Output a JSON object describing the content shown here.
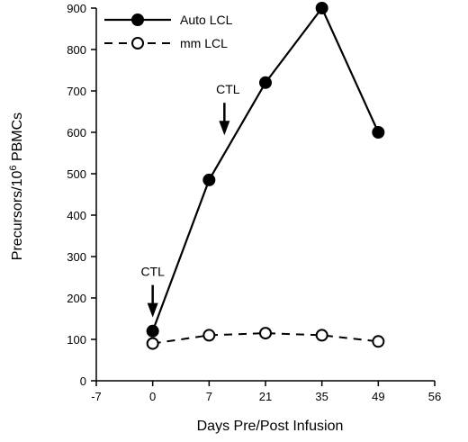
{
  "chart_data": {
    "type": "line",
    "x_tick_labels": [
      "-7",
      "0",
      "7",
      "21",
      "35",
      "49",
      "56"
    ],
    "xlabel": "Days Pre/Post Infusion",
    "ylabel_main": "Precursors/10",
    "ylabel_sup": "6",
    "ylabel_tail": " PBMCs",
    "ylim": [
      0,
      900
    ],
    "y_ticks": [
      0,
      100,
      200,
      300,
      400,
      500,
      600,
      700,
      800,
      900
    ],
    "grid": false,
    "legend_position": "top-left",
    "series": [
      {
        "name": "Auto LCL",
        "marker": "filled-circle",
        "line_style": "solid",
        "x": [
          "0",
          "7",
          "21",
          "35",
          "49"
        ],
        "values": [
          120,
          485,
          720,
          900,
          600
        ]
      },
      {
        "name": "mm LCL",
        "marker": "open-circle",
        "line_style": "dashed",
        "x": [
          "0",
          "7",
          "21",
          "35",
          "49"
        ],
        "values": [
          90,
          110,
          115,
          110,
          95
        ]
      }
    ],
    "annotations": [
      {
        "text": "CTL",
        "x_tick": "0",
        "y": 240
      },
      {
        "text": "CTL",
        "x_tick": "7",
        "y": 680
      }
    ]
  }
}
